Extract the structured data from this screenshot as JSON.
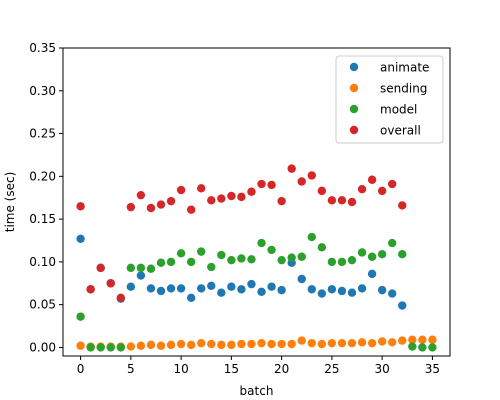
{
  "chart_data": {
    "type": "scatter",
    "title": "",
    "xlabel": "batch",
    "ylabel": "time (sec)",
    "xlim": [
      -1.75,
      36.75
    ],
    "ylim": [
      -0.01,
      0.35
    ],
    "xticks": [
      0,
      5,
      10,
      15,
      20,
      25,
      30,
      35
    ],
    "yticks": [
      0.0,
      0.05,
      0.1,
      0.15,
      0.2,
      0.25,
      0.3,
      0.35
    ],
    "xtick_labels": [
      "0",
      "5",
      "10",
      "15",
      "20",
      "25",
      "30",
      "35"
    ],
    "ytick_labels": [
      "0.00",
      "0.05",
      "0.10",
      "0.15",
      "0.20",
      "0.25",
      "0.30",
      "0.35"
    ],
    "grid": false,
    "legend_position": "top-right",
    "series": [
      {
        "name": "animate",
        "color": "#1f77b4",
        "x": [
          0,
          1,
          2,
          3,
          4,
          5,
          6,
          7,
          8,
          9,
          10,
          11,
          12,
          13,
          14,
          15,
          16,
          17,
          18,
          19,
          20,
          21,
          22,
          23,
          24,
          25,
          26,
          27,
          28,
          29,
          30,
          31,
          32
        ],
        "y": [
          0.127,
          0.068,
          0.093,
          0.075,
          0.057,
          0.071,
          0.084,
          0.069,
          0.066,
          0.069,
          0.069,
          0.058,
          0.069,
          0.072,
          0.064,
          0.071,
          0.068,
          0.074,
          0.065,
          0.071,
          0.067,
          0.099,
          0.08,
          0.068,
          0.063,
          0.068,
          0.066,
          0.064,
          0.069,
          0.086,
          0.067,
          0.063,
          0.049
        ]
      },
      {
        "name": "sending",
        "color": "#ff7f0e",
        "x": [
          0,
          1,
          2,
          3,
          4,
          5,
          6,
          7,
          8,
          9,
          10,
          11,
          12,
          13,
          14,
          15,
          16,
          17,
          18,
          19,
          20,
          21,
          22,
          23,
          24,
          25,
          26,
          27,
          28,
          29,
          30,
          31,
          32,
          33,
          34,
          35
        ],
        "y": [
          0.002,
          0.001,
          0.001,
          0.001,
          0.001,
          0.001,
          0.002,
          0.003,
          0.002,
          0.003,
          0.004,
          0.003,
          0.005,
          0.004,
          0.003,
          0.003,
          0.004,
          0.004,
          0.005,
          0.004,
          0.004,
          0.004,
          0.008,
          0.005,
          0.004,
          0.005,
          0.005,
          0.005,
          0.006,
          0.005,
          0.007,
          0.006,
          0.008,
          0.009,
          0.009,
          0.009
        ]
      },
      {
        "name": "model",
        "color": "#2ca02c",
        "x": [
          0,
          1,
          2,
          3,
          4,
          5,
          6,
          7,
          8,
          9,
          10,
          11,
          12,
          13,
          14,
          15,
          16,
          17,
          18,
          19,
          20,
          21,
          22,
          23,
          24,
          25,
          26,
          27,
          28,
          29,
          30,
          31,
          32,
          33,
          34,
          35
        ],
        "y": [
          0.036,
          0.0,
          0.0,
          0.0,
          0.0,
          0.093,
          0.093,
          0.092,
          0.099,
          0.1,
          0.11,
          0.1,
          0.112,
          0.094,
          0.108,
          0.102,
          0.104,
          0.103,
          0.122,
          0.114,
          0.102,
          0.105,
          0.106,
          0.129,
          0.117,
          0.1,
          0.1,
          0.102,
          0.111,
          0.106,
          0.109,
          0.122,
          0.109,
          0.001,
          0.0,
          0.0
        ]
      },
      {
        "name": "overall",
        "color": "#d62728",
        "x": [
          0,
          1,
          2,
          3,
          4,
          5,
          6,
          7,
          8,
          9,
          10,
          11,
          12,
          13,
          14,
          15,
          16,
          17,
          18,
          19,
          20,
          21,
          22,
          23,
          24,
          25,
          26,
          27,
          28,
          29,
          30,
          31,
          32
        ],
        "y": [
          0.165,
          0.068,
          0.093,
          0.075,
          0.058,
          0.164,
          0.178,
          0.163,
          0.167,
          0.171,
          0.184,
          0.161,
          0.186,
          0.172,
          0.174,
          0.177,
          0.176,
          0.182,
          0.191,
          0.19,
          0.171,
          0.209,
          0.194,
          0.201,
          0.183,
          0.172,
          0.172,
          0.17,
          0.185,
          0.196,
          0.183,
          0.191,
          0.166
        ]
      }
    ]
  }
}
